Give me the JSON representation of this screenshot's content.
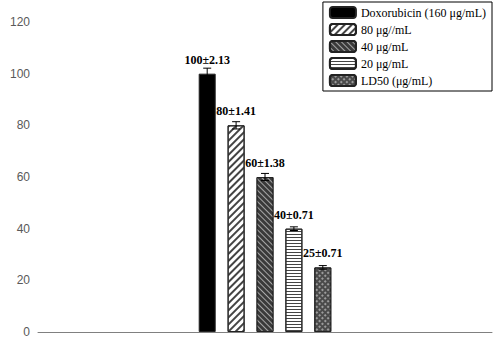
{
  "chart_data": {
    "type": "bar",
    "categories": [
      null
    ],
    "series": [
      {
        "name": "Doxorubicin (160 μg/mL)",
        "color": "#000000",
        "values": [
          100
        ],
        "error": [
          2.13
        ],
        "value_labels": [
          "100±2.13"
        ]
      },
      {
        "name": "80 μg//mL",
        "color": "#ffffff",
        "values": [
          80
        ],
        "error": [
          1.41
        ],
        "value_labels": [
          "80±1.41"
        ]
      },
      {
        "name": "40 μg/mL",
        "color": "#3a3a3a",
        "values": [
          60
        ],
        "error": [
          1.38
        ],
        "value_labels": [
          "60±1.38"
        ]
      },
      {
        "name": "20 μg/mL",
        "color": "#ffffff",
        "values": [
          40
        ],
        "error": [
          0.71
        ],
        "value_labels": [
          "40±0.71"
        ]
      },
      {
        "name": "LD50 (μg/mL)",
        "color": "#4a4a4a",
        "values": [
          25
        ],
        "error": [
          0.71
        ],
        "value_labels": [
          "25±0.71"
        ]
      }
    ],
    "ylim": [
      0,
      120
    ],
    "yticks": [
      0,
      20,
      40,
      60,
      80,
      100,
      120
    ],
    "grid": false,
    "legend": "upper right",
    "data_labels": true
  }
}
